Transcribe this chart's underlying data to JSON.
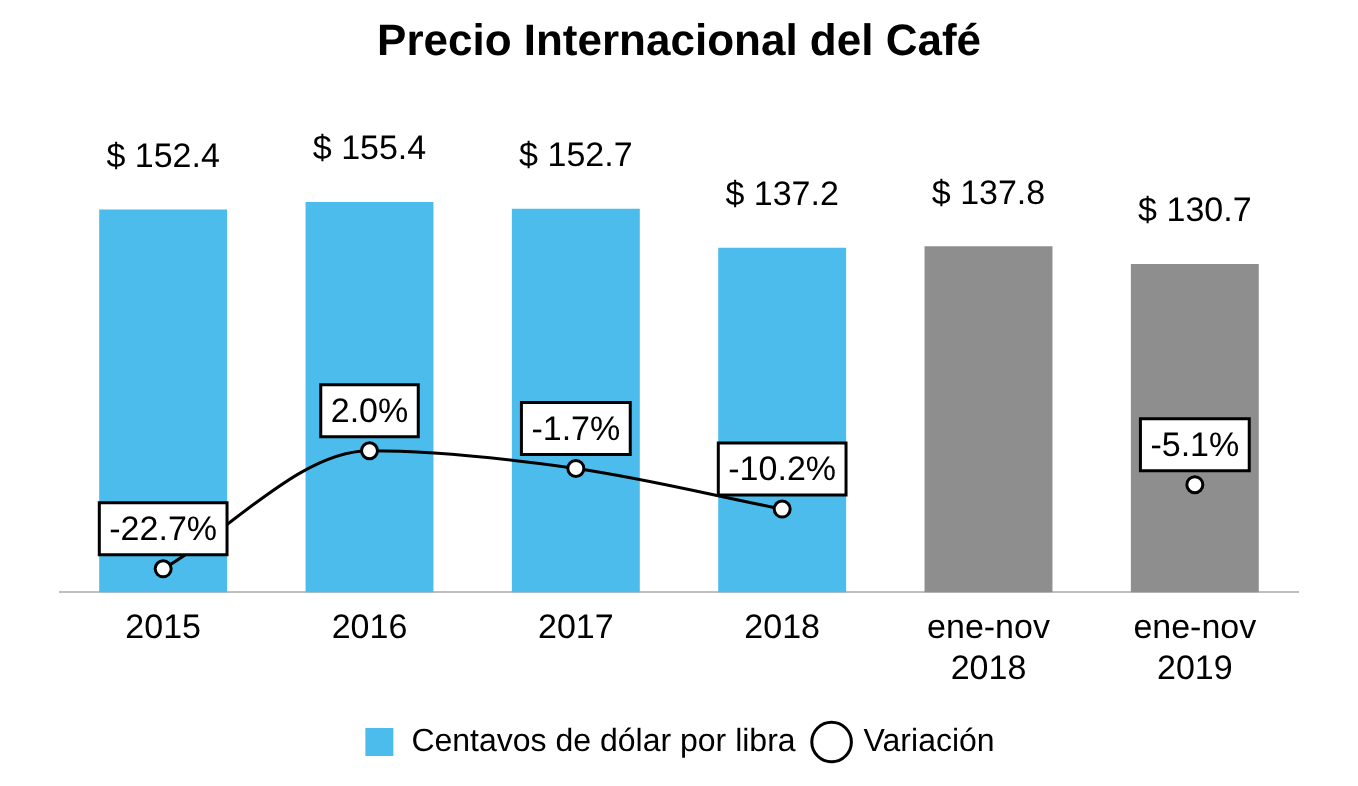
{
  "chart_data": {
    "type": "bar",
    "title": "Precio Internacional del Café",
    "categories": [
      "2015",
      "2016",
      "2017",
      "2018",
      "ene-nov 2018",
      "ene-nov 2019"
    ],
    "series": [
      {
        "name": "Centavos de dólar por libra",
        "colors": [
          "#4cbcec",
          "#4cbcec",
          "#4cbcec",
          "#4cbcec",
          "#8e8e8e",
          "#8e8e8e"
        ],
        "values": [
          152.4,
          155.4,
          152.7,
          137.2,
          137.8,
          130.7
        ],
        "value_labels": [
          "$ 152.4",
          "$ 155.4",
          "$ 152.7",
          "$ 137.2",
          "$ 137.8",
          "$ 130.7"
        ]
      },
      {
        "type": "line",
        "name": "Variación",
        "color": "#000000",
        "axis": "y2",
        "values": [
          -22.7,
          2.0,
          -1.7,
          -10.2,
          null,
          -5.1
        ],
        "value_labels": [
          "-22.7%",
          "2.0%",
          "-1.7%",
          "-10.2%",
          null,
          "-5.1%"
        ]
      }
    ],
    "legend": "bottom",
    "marker": "circle",
    "line_style": "solid",
    "grid": false
  }
}
